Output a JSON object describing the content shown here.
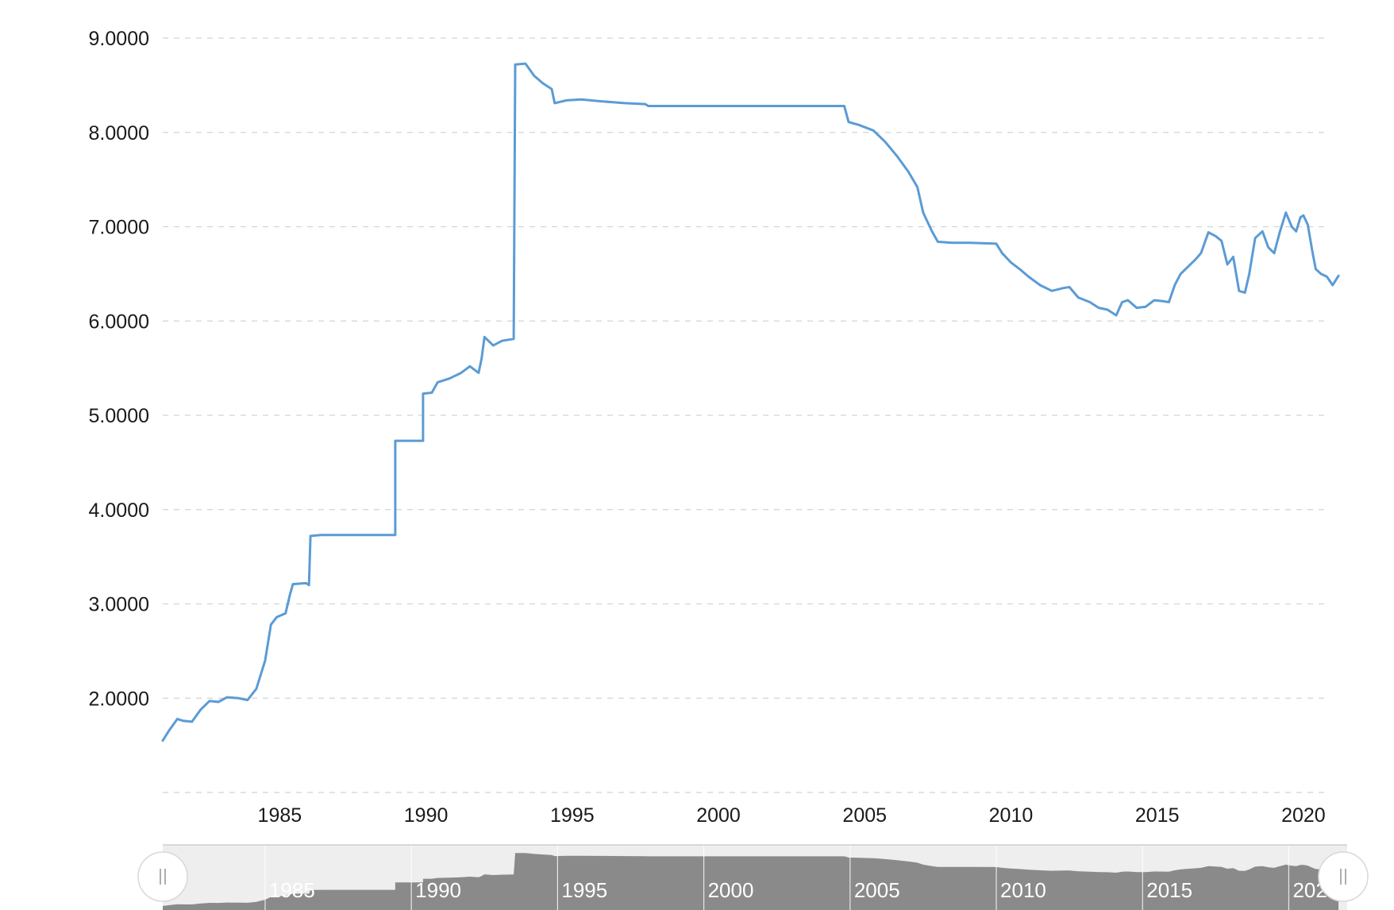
{
  "chart_data": {
    "type": "line",
    "title": "",
    "xlabel": "",
    "ylabel": "",
    "xlim": [
      1981.0,
      2020.6
    ],
    "ylim": [
      1.0,
      9.0
    ],
    "y_ticks": [
      "9.0000",
      "8.0000",
      "7.0000",
      "6.0000",
      "5.0000",
      "4.0000",
      "3.0000",
      "2.0000"
    ],
    "y_tick_values": [
      9,
      8,
      7,
      6,
      5,
      4,
      3,
      2
    ],
    "x_ticks": [
      "1985",
      "1990",
      "1995",
      "2000",
      "2005",
      "2010",
      "2015",
      "2020"
    ],
    "x_tick_values": [
      1985,
      1990,
      1995,
      2000,
      2005,
      2010,
      2015,
      2020
    ],
    "grid": true,
    "legend": "none",
    "colors": {
      "line": "#5b9bd5",
      "navigator_fill": "#8a8a8a",
      "navigator_bg": "#eeeeee"
    },
    "series": [
      {
        "values": [
          [
            1981.0,
            1.55
          ],
          [
            1981.2,
            1.65
          ],
          [
            1981.5,
            1.78
          ],
          [
            1981.7,
            1.76
          ],
          [
            1982.0,
            1.75
          ],
          [
            1982.3,
            1.88
          ],
          [
            1982.6,
            1.97
          ],
          [
            1982.9,
            1.96
          ],
          [
            1983.2,
            2.01
          ],
          [
            1983.6,
            2.0
          ],
          [
            1983.9,
            1.98
          ],
          [
            1984.2,
            2.1
          ],
          [
            1984.5,
            2.4
          ],
          [
            1984.7,
            2.78
          ],
          [
            1984.9,
            2.86
          ],
          [
            1985.2,
            2.9
          ],
          [
            1985.35,
            3.1
          ],
          [
            1985.45,
            3.21
          ],
          [
            1985.9,
            3.22
          ],
          [
            1986.0,
            3.2
          ],
          [
            1986.05,
            3.72
          ],
          [
            1986.4,
            3.73
          ],
          [
            1988.95,
            3.73
          ],
          [
            1988.95,
            4.73
          ],
          [
            1989.9,
            4.73
          ],
          [
            1989.9,
            5.23
          ],
          [
            1990.2,
            5.24
          ],
          [
            1990.4,
            5.35
          ],
          [
            1990.8,
            5.39
          ],
          [
            1991.2,
            5.45
          ],
          [
            1991.5,
            5.52
          ],
          [
            1991.8,
            5.45
          ],
          [
            1991.9,
            5.6
          ],
          [
            1992.0,
            5.83
          ],
          [
            1992.3,
            5.74
          ],
          [
            1992.6,
            5.79
          ],
          [
            1993.0,
            5.81
          ],
          [
            1993.05,
            8.72
          ],
          [
            1993.4,
            8.73
          ],
          [
            1993.7,
            8.6
          ],
          [
            1994.0,
            8.52
          ],
          [
            1994.3,
            8.46
          ],
          [
            1994.4,
            8.31
          ],
          [
            1994.8,
            8.34
          ],
          [
            1995.3,
            8.35
          ],
          [
            1996.0,
            8.33
          ],
          [
            1996.8,
            8.31
          ],
          [
            1997.5,
            8.3
          ],
          [
            1997.6,
            8.28
          ],
          [
            2000.0,
            8.28
          ],
          [
            2002.0,
            8.28
          ],
          [
            2004.3,
            8.28
          ],
          [
            2004.45,
            8.11
          ],
          [
            2004.8,
            8.08
          ],
          [
            2005.3,
            8.02
          ],
          [
            2005.7,
            7.9
          ],
          [
            2006.1,
            7.75
          ],
          [
            2006.5,
            7.58
          ],
          [
            2006.8,
            7.42
          ],
          [
            2007.0,
            7.15
          ],
          [
            2007.3,
            6.95
          ],
          [
            2007.5,
            6.84
          ],
          [
            2008.0,
            6.83
          ],
          [
            2008.6,
            6.83
          ],
          [
            2009.5,
            6.82
          ],
          [
            2009.7,
            6.72
          ],
          [
            2010.0,
            6.62
          ],
          [
            2010.3,
            6.55
          ],
          [
            2010.6,
            6.47
          ],
          [
            2011.0,
            6.38
          ],
          [
            2011.4,
            6.32
          ],
          [
            2011.8,
            6.35
          ],
          [
            2012.0,
            6.36
          ],
          [
            2012.3,
            6.25
          ],
          [
            2012.7,
            6.2
          ],
          [
            2013.0,
            6.14
          ],
          [
            2013.3,
            6.12
          ],
          [
            2013.6,
            6.06
          ],
          [
            2013.8,
            6.2
          ],
          [
            2014.0,
            6.22
          ],
          [
            2014.3,
            6.14
          ],
          [
            2014.6,
            6.15
          ],
          [
            2014.9,
            6.22
          ],
          [
            2015.2,
            6.21
          ],
          [
            2015.4,
            6.2
          ],
          [
            2015.6,
            6.38
          ],
          [
            2015.8,
            6.5
          ],
          [
            2016.0,
            6.56
          ],
          [
            2016.3,
            6.65
          ],
          [
            2016.5,
            6.72
          ],
          [
            2016.75,
            6.94
          ],
          [
            2017.0,
            6.9
          ],
          [
            2017.2,
            6.85
          ],
          [
            2017.4,
            6.6
          ],
          [
            2017.6,
            6.68
          ],
          [
            2017.8,
            6.32
          ],
          [
            2018.0,
            6.3
          ],
          [
            2018.15,
            6.5
          ],
          [
            2018.35,
            6.88
          ],
          [
            2018.6,
            6.95
          ],
          [
            2018.8,
            6.78
          ],
          [
            2019.0,
            6.72
          ],
          [
            2019.2,
            6.95
          ],
          [
            2019.4,
            7.15
          ],
          [
            2019.6,
            7.0
          ],
          [
            2019.75,
            6.95
          ],
          [
            2019.9,
            7.1
          ],
          [
            2020.0,
            7.12
          ],
          [
            2020.15,
            7.02
          ],
          [
            2020.3,
            6.75
          ],
          [
            2020.42,
            6.55
          ],
          [
            2020.6,
            6.5
          ],
          [
            2020.8,
            6.47
          ],
          [
            2021.0,
            6.38
          ],
          [
            2021.2,
            6.48
          ]
        ]
      }
    ]
  }
}
